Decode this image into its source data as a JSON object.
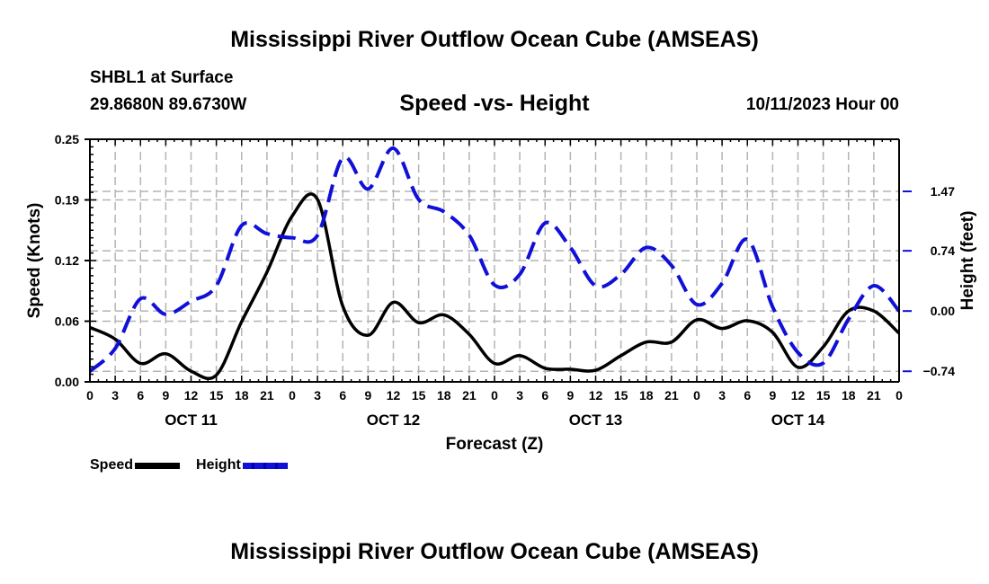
{
  "header": {
    "main_title": "Mississippi River Outflow Ocean Cube (AMSEAS)",
    "station": "SHBL1 at Surface",
    "coords": "29.8680N  89.6730W",
    "subtitle": "Speed -vs- Height",
    "run_time": "10/11/2023 Hour 00"
  },
  "footer": {
    "bottom_title": "Mississippi River Outflow Ocean Cube (AMSEAS)"
  },
  "legend": {
    "speed_label": "Speed",
    "height_label": "Height"
  },
  "colors": {
    "speed": "#000000",
    "height": "#1010d8",
    "grid": "#b4b4b4"
  },
  "chart_data": {
    "type": "line",
    "title": "Speed -vs- Height",
    "xlabel": "Forecast (Z)",
    "ylabel": "Speed (Knots)",
    "y2label": "Height (feet)",
    "x_unit": "forecast hour from 10/11/2023 00Z",
    "xlim": [
      0,
      96
    ],
    "ylim": [
      0,
      0.25
    ],
    "y2lim": [
      -0.87,
      2.11
    ],
    "grid": true,
    "legend_position": "bottom-left",
    "x_tick_hours": [
      0,
      3,
      6,
      9,
      12,
      15,
      18,
      21,
      24,
      27,
      30,
      33,
      36,
      39,
      42,
      45,
      48,
      51,
      54,
      57,
      60,
      63,
      66,
      69,
      72,
      75,
      78,
      81,
      84,
      87,
      90,
      93,
      96
    ],
    "x_tick_labels": [
      "0",
      "3",
      "6",
      "9",
      "12",
      "15",
      "18",
      "21",
      "0",
      "3",
      "6",
      "9",
      "12",
      "15",
      "18",
      "21",
      "0",
      "3",
      "6",
      "9",
      "12",
      "15",
      "18",
      "21",
      "0",
      "3",
      "6",
      "9",
      "12",
      "15",
      "18",
      "21",
      "0"
    ],
    "day_labels": [
      {
        "hour": 12,
        "label": "OCT 11"
      },
      {
        "hour": 36,
        "label": "OCT 12"
      },
      {
        "hour": 60,
        "label": "OCT 13"
      },
      {
        "hour": 84,
        "label": "OCT 14"
      }
    ],
    "y_ticks": [
      {
        "value": 0.0,
        "label": "0.00"
      },
      {
        "value": 0.0625,
        "label": "0.06"
      },
      {
        "value": 0.125,
        "label": "0.12"
      },
      {
        "value": 0.1875,
        "label": "0.19"
      },
      {
        "value": 0.25,
        "label": "0.25"
      }
    ],
    "y2_ticks": [
      {
        "value": -0.74,
        "label": "−0.74"
      },
      {
        "value": 0.0,
        "label": "0.00"
      },
      {
        "value": 0.74,
        "label": "0.74"
      },
      {
        "value": 1.47,
        "label": "1.47"
      }
    ],
    "x": [
      0,
      3,
      6,
      9,
      12,
      15,
      18,
      21,
      24,
      27,
      30,
      33,
      36,
      39,
      42,
      45,
      48,
      51,
      54,
      57,
      60,
      63,
      66,
      69,
      72,
      75,
      78,
      81,
      84,
      87,
      90,
      93,
      96
    ],
    "series": [
      {
        "name": "Speed",
        "axis": "left",
        "style": "solid",
        "values": [
          0.056,
          0.044,
          0.019,
          0.029,
          0.011,
          0.007,
          0.062,
          0.113,
          0.171,
          0.188,
          0.078,
          0.048,
          0.082,
          0.061,
          0.069,
          0.049,
          0.019,
          0.027,
          0.014,
          0.013,
          0.012,
          0.027,
          0.041,
          0.041,
          0.064,
          0.055,
          0.063,
          0.051,
          0.015,
          0.036,
          0.073,
          0.073,
          0.05
        ]
      },
      {
        "name": "Height",
        "axis": "right",
        "style": "dashed",
        "values": [
          -0.74,
          -0.46,
          0.15,
          -0.04,
          0.12,
          0.31,
          1.05,
          0.95,
          0.9,
          0.93,
          1.88,
          1.5,
          2.0,
          1.37,
          1.22,
          0.93,
          0.32,
          0.45,
          1.08,
          0.78,
          0.31,
          0.45,
          0.78,
          0.56,
          0.08,
          0.34,
          0.88,
          0.05,
          -0.51,
          -0.64,
          -0.1,
          0.31,
          0.0
        ]
      }
    ]
  }
}
